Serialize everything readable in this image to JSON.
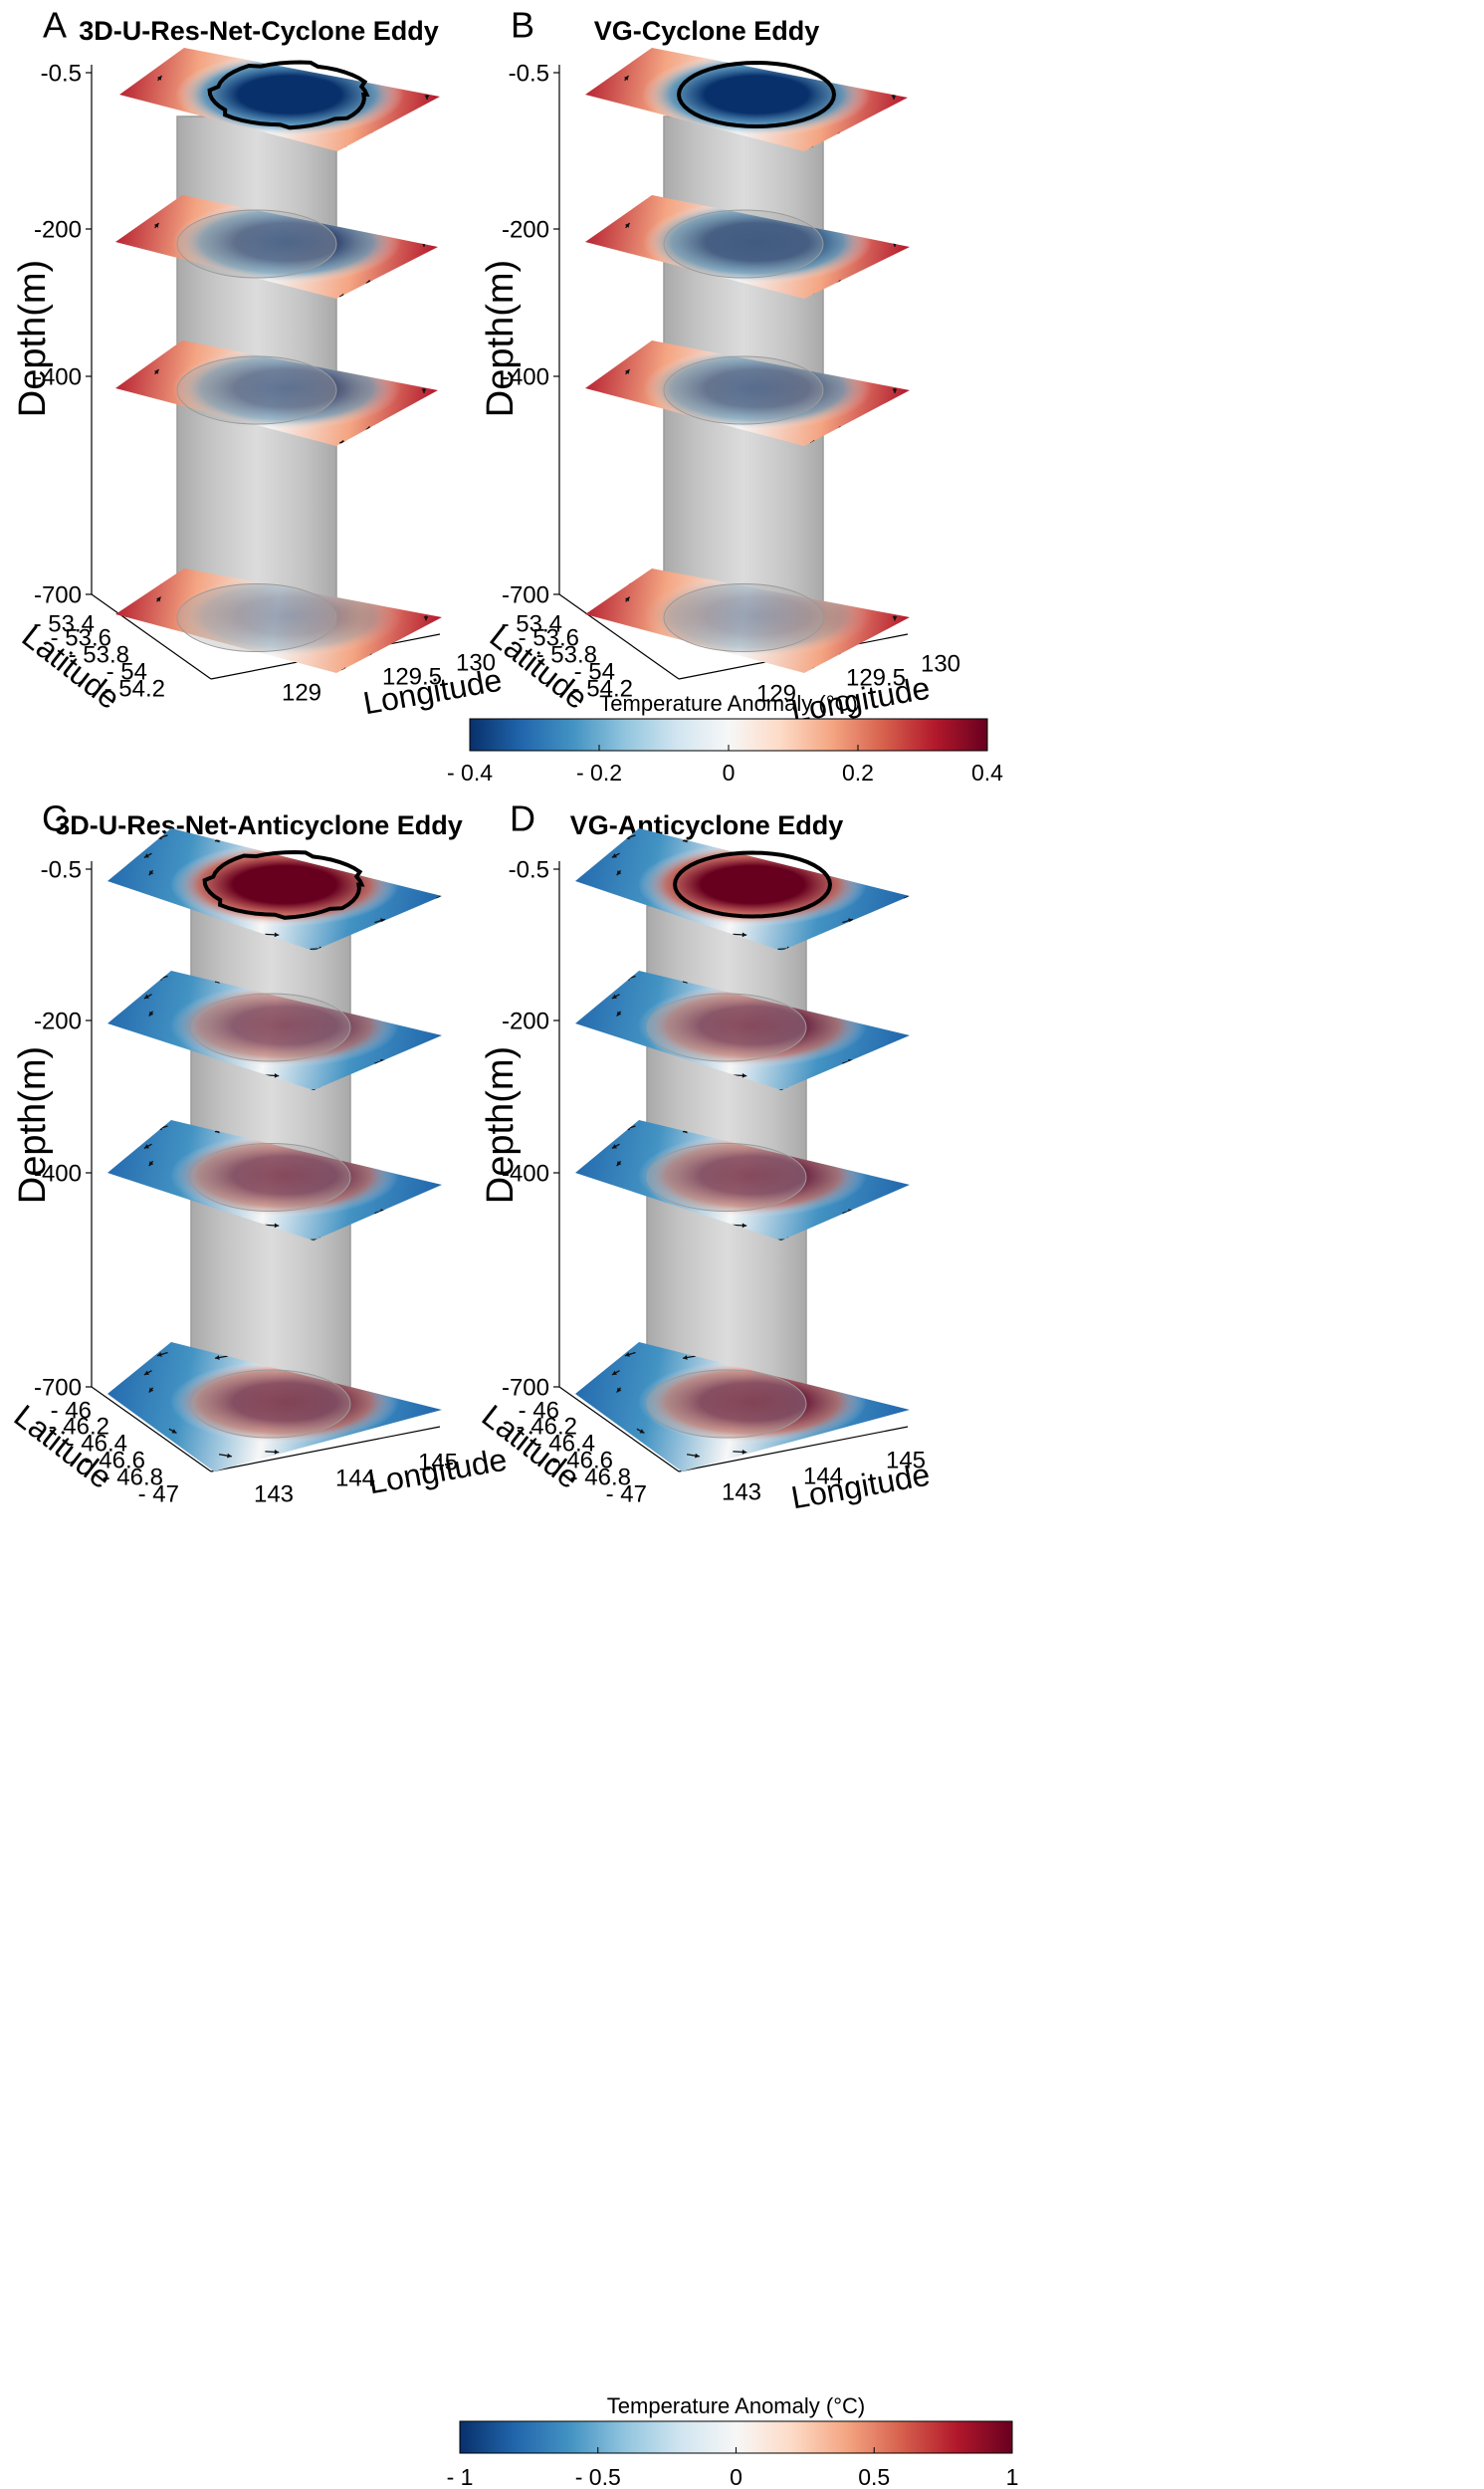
{
  "colormap": {
    "stops": [
      "#08306b",
      "#2166ac",
      "#4393c3",
      "#92c5de",
      "#d1e5f0",
      "#f7f7f7",
      "#fddbc7",
      "#f4a582",
      "#d6604d",
      "#b2182b",
      "#67001f"
    ],
    "tube_color": "#a9a9a9",
    "contour_color": "#000000"
  },
  "chart_data": [
    {
      "id": "A",
      "type": "3d-slices",
      "letter": "A",
      "title": "3D-U-Res-Net-Cyclone Eddy",
      "zlabel": "Depth(m)",
      "xlabel": "Longitude",
      "ylabel": "Latitude",
      "depth_ticks": [
        "-0.5",
        "-200",
        "-400",
        "-700"
      ],
      "depth_values": [
        -0.5,
        -200,
        -400,
        -700
      ],
      "lat_ticks": [
        "- 53.4",
        "- 53.6",
        "- 53.8",
        "- 54",
        "- 54.2"
      ],
      "lon_ticks": [
        "129",
        "129.5",
        "130"
      ],
      "eddy_sign": -1,
      "slice_strength": [
        1.0,
        0.8,
        0.7,
        0.35
      ],
      "contour_style": "jagged"
    },
    {
      "id": "B",
      "type": "3d-slices",
      "letter": "B",
      "title": "VG-Cyclone Eddy",
      "zlabel": "Depth(m)",
      "xlabel": "Longitude",
      "ylabel": "Latitude",
      "depth_ticks": [
        "-0.5",
        "-200",
        "-400",
        "-700"
      ],
      "depth_values": [
        -0.5,
        -200,
        -400,
        -700
      ],
      "lat_ticks": [
        "- 53.4",
        "- 53.6",
        "- 53.8",
        "- 54",
        "- 54.2"
      ],
      "lon_ticks": [
        "129",
        "129.5",
        "130"
      ],
      "eddy_sign": -1,
      "slice_strength": [
        1.0,
        0.95,
        0.75,
        0.35
      ],
      "contour_style": "smooth"
    },
    {
      "id": "C",
      "type": "3d-slices",
      "letter": "C",
      "title": "3D-U-Res-Net-Anticyclone Eddy",
      "zlabel": "Depth(m)",
      "xlabel": "Longitude",
      "ylabel": "Latitude",
      "depth_ticks": [
        "-0.5",
        "-200",
        "-400",
        "-700"
      ],
      "depth_values": [
        -0.5,
        -200,
        -400,
        -700
      ],
      "lat_ticks": [
        "- 46",
        "- 46.2",
        "- 46.4",
        "- 46.6",
        "- 46.8",
        "- 47"
      ],
      "lon_ticks": [
        "143",
        "144",
        "145"
      ],
      "eddy_sign": 1,
      "slice_strength": [
        1.0,
        0.75,
        0.8,
        0.85
      ],
      "contour_style": "jagged"
    },
    {
      "id": "D",
      "type": "3d-slices",
      "letter": "D",
      "title": "VG-Anticyclone Eddy",
      "zlabel": "Depth(m)",
      "xlabel": "Longitude",
      "ylabel": "Latitude",
      "depth_ticks": [
        "-0.5",
        "-200",
        "-400",
        "-700"
      ],
      "depth_values": [
        -0.5,
        -200,
        -400,
        -700
      ],
      "lat_ticks": [
        "- 46",
        "- 46.2",
        "- 46.4",
        "- 46.6",
        "- 46.8",
        "- 47"
      ],
      "lon_ticks": [
        "143",
        "144",
        "145"
      ],
      "eddy_sign": 1,
      "slice_strength": [
        1.0,
        0.8,
        0.8,
        0.85
      ],
      "contour_style": "smooth"
    }
  ],
  "colorbars": [
    {
      "id": "top",
      "title": "Temperature Anomaly (°C)",
      "range": [
        -0.4,
        0.4
      ],
      "ticks": [
        "- 0.4",
        "- 0.2",
        "0",
        "0.2",
        "0.4"
      ],
      "tick_values": [
        -0.4,
        -0.2,
        0,
        0.2,
        0.4
      ]
    },
    {
      "id": "bottom",
      "title": "Temperature Anomaly (°C)",
      "range": [
        -1,
        1
      ],
      "ticks": [
        "- 1",
        "- 0.5",
        "0",
        "0.5",
        "1"
      ],
      "tick_values": [
        -1,
        -0.5,
        0,
        0.5,
        1
      ]
    }
  ]
}
